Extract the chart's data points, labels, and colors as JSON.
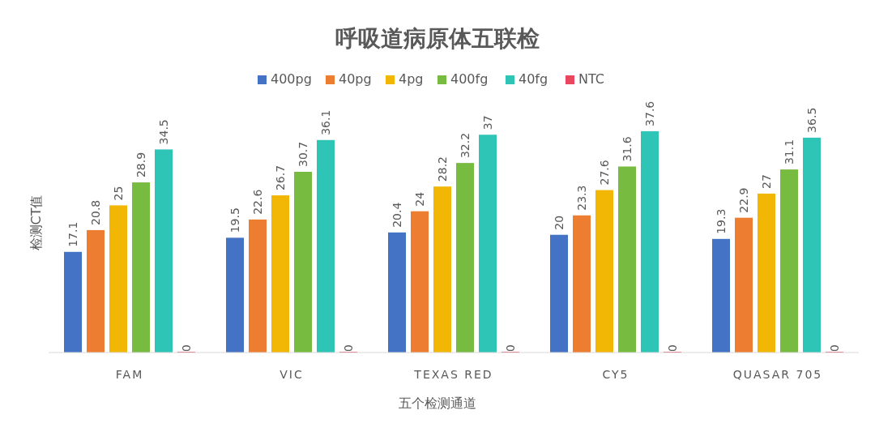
{
  "chart_data": {
    "type": "bar",
    "title": "呼吸道病原体五联检",
    "xlabel": "五个检测通道",
    "ylabel": "检测CT值",
    "categories": [
      "FAM",
      "VIC",
      "TEXAS RED",
      "CY5",
      "QUASAR 705"
    ],
    "series": [
      {
        "name": "400pg",
        "color": "#4472c4",
        "values": [
          17.1,
          19.5,
          20.4,
          20,
          19.3
        ]
      },
      {
        "name": "40pg",
        "color": "#ed7d31",
        "values": [
          20.8,
          22.6,
          24,
          23.3,
          22.9
        ]
      },
      {
        "name": "4pg",
        "color": "#f2b705",
        "values": [
          25,
          26.7,
          28.2,
          27.6,
          27
        ]
      },
      {
        "name": "400fg",
        "color": "#77bb41",
        "values": [
          28.9,
          30.7,
          32.2,
          31.6,
          31.1
        ]
      },
      {
        "name": "40fg",
        "color": "#2ec4b6",
        "values": [
          34.5,
          36.1,
          37,
          37.6,
          36.5
        ]
      },
      {
        "name": "NTC",
        "color": "#e8475f",
        "values": [
          0,
          0,
          0,
          0,
          0
        ]
      }
    ],
    "data_labels": true,
    "legend": "top"
  }
}
